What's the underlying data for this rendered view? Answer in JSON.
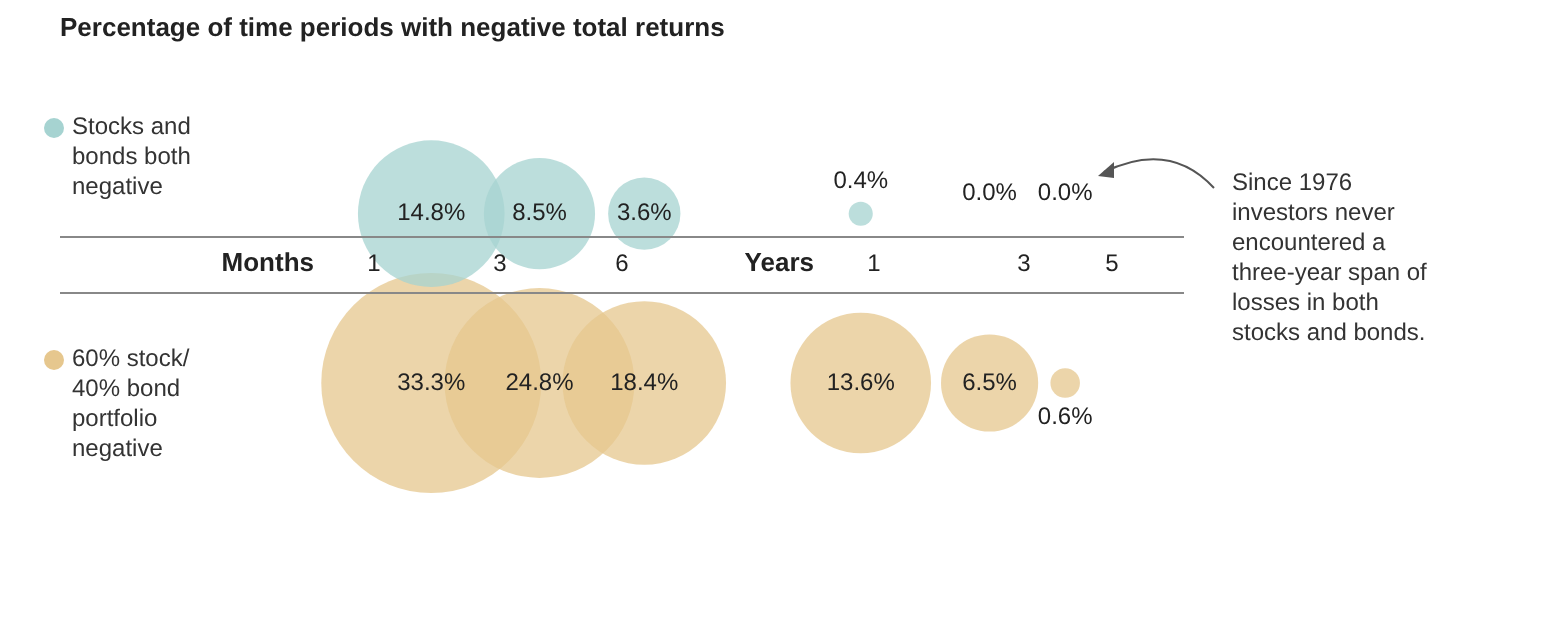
{
  "chart_data": {
    "type": "other",
    "title": "Percentage of time periods with negative total returns",
    "categories": [
      "1",
      "3",
      "6",
      "1",
      "3",
      "5"
    ],
    "series": [
      {
        "name": "Stocks and bonds both negative",
        "color": "#a6d3d1",
        "values": [
          14.8,
          8.5,
          3.6,
          0.4,
          0.0,
          0.0
        ],
        "value_labels": [
          "14.8%",
          "8.5%",
          "3.6%",
          "0.4%",
          "0.0%",
          "0.0%"
        ]
      },
      {
        "name": "60% stock/ 40% bond portfolio negative",
        "color": "#e6c78e",
        "values": [
          33.3,
          24.8,
          18.4,
          13.6,
          6.5,
          0.6
        ],
        "value_labels": [
          "33.3%",
          "24.8%",
          "18.4%",
          "13.6%",
          "6.5%",
          "0.6%"
        ]
      }
    ],
    "legend": "left",
    "annotations": [
      "Months",
      "Years",
      "Since 1976 investors never encountered a three-year span of losses in both stocks and bonds."
    ]
  }
}
